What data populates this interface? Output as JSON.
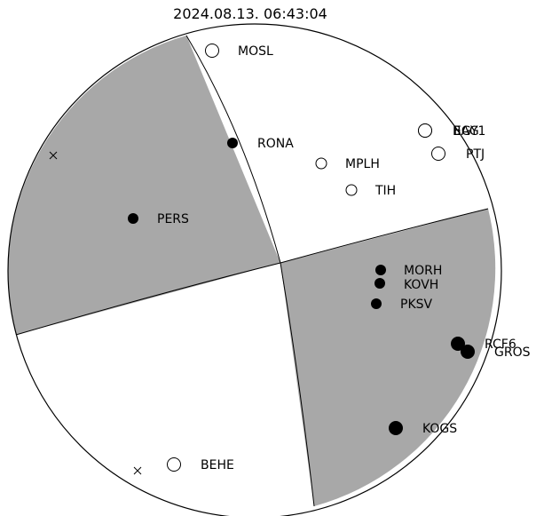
{
  "title": "2024.08.13. 06:43:04",
  "colors": {
    "compression_fill": "#a8a8a8",
    "dilatation_fill": "#ffffff",
    "outline": "#000000",
    "station_up": "#000000",
    "station_down": "#ffffff"
  },
  "legend_symbols": {
    "filled_circle": "compression (up) first motion",
    "open_circle": "dilatation (down) first motion",
    "cross": "axis marker"
  },
  "stations": [
    {
      "id": "MOSL",
      "label": "MOSL",
      "polarity": "down"
    },
    {
      "id": "RONA",
      "label": "RONA",
      "polarity": "up"
    },
    {
      "id": "PERS",
      "label": "PERS",
      "polarity": "up"
    },
    {
      "id": "MPLH",
      "label": "MPLH",
      "polarity": "down"
    },
    {
      "id": "TIH",
      "label": "TIH",
      "polarity": "down"
    },
    {
      "id": "PTJ",
      "label": "PTJ",
      "polarity": "down"
    },
    {
      "id": "BAGA",
      "label": "BAG",
      "polarity": "down"
    },
    {
      "id": "EGY1",
      "label": "EGY1",
      "polarity": "down"
    },
    {
      "id": "MORH",
      "label": "MORH",
      "polarity": "up"
    },
    {
      "id": "KOVH",
      "label": "KOVH",
      "polarity": "up"
    },
    {
      "id": "PKSV",
      "label": "PKSV",
      "polarity": "up"
    },
    {
      "id": "RCF6",
      "label": "RCF6",
      "polarity": "up"
    },
    {
      "id": "GROS",
      "label": "GROS",
      "polarity": "up"
    },
    {
      "id": "KOGS",
      "label": "KOGS",
      "polarity": "up"
    },
    {
      "id": "BEHE",
      "label": "BEHE",
      "polarity": "down"
    }
  ]
}
